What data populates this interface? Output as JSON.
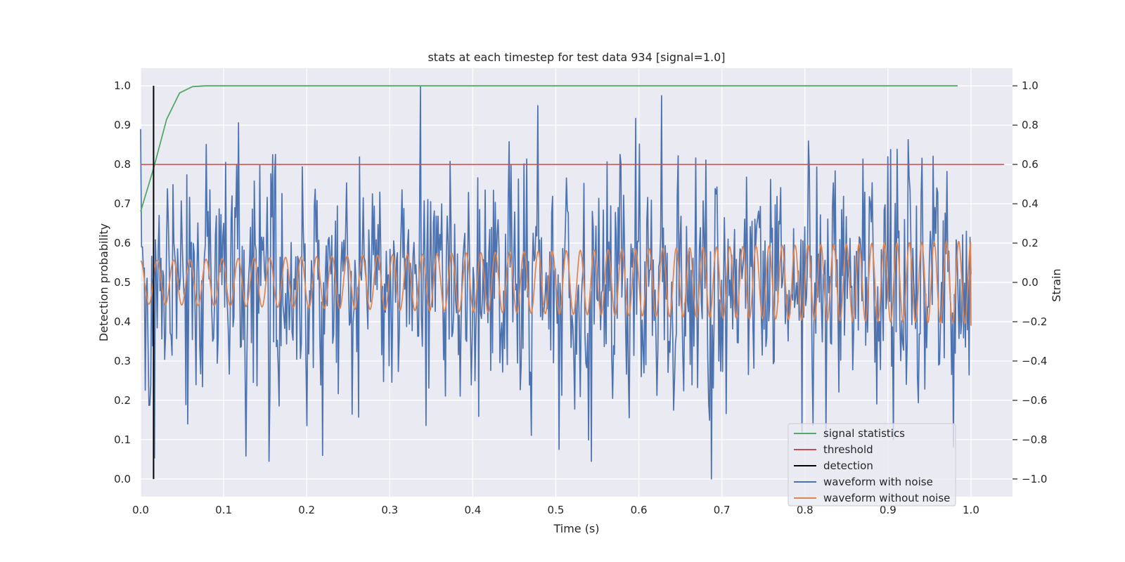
{
  "chart_data": {
    "type": "line",
    "title": "stats at each timestep for test data 934 [signal=1.0]",
    "xlabel": "Time (s)",
    "ylabel_left": "Detection probability",
    "ylabel_right": "Strain",
    "xlim": [
      0.0,
      1.05
    ],
    "ylim_left": [
      -0.045,
      1.045
    ],
    "ylim_right": [
      -1.09,
      1.09
    ],
    "x_ticks": [
      "0.0",
      "0.1",
      "0.2",
      "0.3",
      "0.4",
      "0.5",
      "0.6",
      "0.7",
      "0.8",
      "0.9",
      "1.0"
    ],
    "x_tick_values": [
      0.0,
      0.1,
      0.2,
      0.3,
      0.4,
      0.5,
      0.6,
      0.7,
      0.8,
      0.9,
      1.0
    ],
    "y_left_ticks": [
      "0.0",
      "0.1",
      "0.2",
      "0.3",
      "0.4",
      "0.5",
      "0.6",
      "0.7",
      "0.8",
      "0.9",
      "1.0"
    ],
    "y_left_tick_values": [
      0.0,
      0.1,
      0.2,
      0.3,
      0.4,
      0.5,
      0.6,
      0.7,
      0.8,
      0.9,
      1.0
    ],
    "y_right_ticks": [
      "−1.0",
      "−0.8",
      "−0.6",
      "−0.4",
      "−0.2",
      "0.0",
      "0.2",
      "0.4",
      "0.6",
      "0.8",
      "1.0"
    ],
    "y_right_tick_values": [
      -1.0,
      -0.8,
      -0.6,
      -0.4,
      -0.2,
      0.0,
      0.2,
      0.4,
      0.6,
      0.8,
      1.0
    ],
    "grid": true,
    "legend_position": "lower-right",
    "colors": {
      "signal_statistics": "#55a868",
      "threshold": "#c44e52",
      "detection": "#000000",
      "waveform_with_noise": "#4c72b0",
      "waveform_without_noise": "#dd8452",
      "plot_background": "#eaeaf2",
      "grid": "#ffffff"
    },
    "legend": [
      "signal statistics",
      "threshold",
      "detection",
      "waveform with noise",
      "waveform without noise"
    ],
    "series": [
      {
        "name": "signal statistics",
        "axis": "left",
        "x": [
          0.0,
          0.0156,
          0.0313,
          0.0469,
          0.0625,
          0.078,
          0.1,
          0.2,
          0.4,
          0.6,
          0.8,
          0.984
        ],
        "y": [
          0.68,
          0.79,
          0.915,
          0.982,
          0.998,
          1.0,
          1.0,
          1.0,
          1.0,
          1.0,
          1.0,
          1.0
        ]
      },
      {
        "name": "threshold",
        "axis": "left",
        "x": [
          0.0,
          1.04
        ],
        "y": [
          0.8,
          0.8
        ]
      },
      {
        "name": "detection",
        "axis": "left",
        "x": [
          0.0156,
          0.0156
        ],
        "y": [
          0.0,
          1.0
        ]
      },
      {
        "name": "waveform with noise",
        "axis": "right",
        "x_start": 0.0,
        "x_end": 1.0,
        "n_points": 900,
        "y_range": [
          -1.0,
          1.0
        ],
        "noise_std": 0.3,
        "peaks": [
          {
            "x": 0.337,
            "y": 1.0
          },
          {
            "x": 0.687,
            "y": -1.0
          },
          {
            "x": 0.155,
            "y": -0.91
          },
          {
            "x": 0.543,
            "y": -0.91
          },
          {
            "x": 0.219,
            "y": -0.88
          },
          {
            "x": 0.0,
            "y": 0.78
          },
          {
            "x": 0.057,
            "y": -0.72
          }
        ]
      },
      {
        "name": "waveform without noise",
        "axis": "right",
        "x_start": 0.0,
        "x_end": 1.0,
        "amplitude_start": 0.11,
        "amplitude_end": 0.21,
        "freq_start_hz": 50,
        "freq_end_hz": 68,
        "end_value": -0.22
      }
    ]
  }
}
